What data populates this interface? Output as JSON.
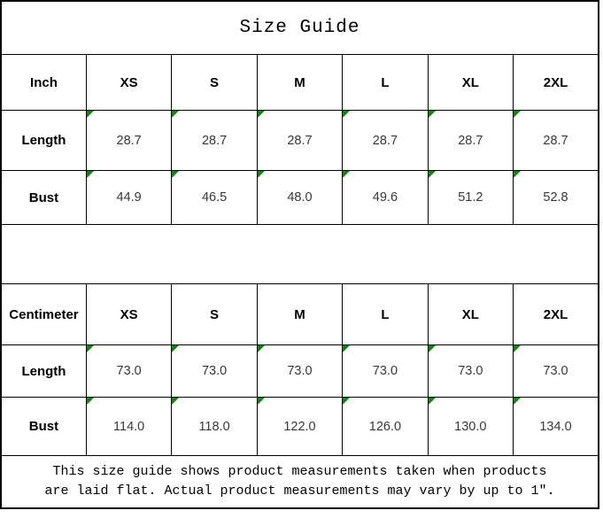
{
  "title": "Size Guide",
  "inch_table": {
    "unit_label": "Inch",
    "sizes": [
      "XS",
      "S",
      "M",
      "L",
      "XL",
      "2XL"
    ],
    "rows": [
      {
        "label": "Length",
        "values": [
          "28.7",
          "28.7",
          "28.7",
          "28.7",
          "28.7",
          "28.7"
        ]
      },
      {
        "label": "Bust",
        "values": [
          "44.9",
          "46.5",
          "48.0",
          "49.6",
          "51.2",
          "52.8"
        ]
      }
    ]
  },
  "cm_table": {
    "unit_label": "Centimeter",
    "sizes": [
      "XS",
      "S",
      "M",
      "L",
      "XL",
      "2XL"
    ],
    "rows": [
      {
        "label": "Length",
        "values": [
          "73.0",
          "73.0",
          "73.0",
          "73.0",
          "73.0",
          "73.0"
        ]
      },
      {
        "label": "Bust",
        "values": [
          "114.0",
          "118.0",
          "122.0",
          "126.0",
          "130.0",
          "134.0"
        ]
      }
    ]
  },
  "footer": {
    "line1": "This size guide shows product measurements taken when products",
    "line2": "are laid flat. Actual product measurements may vary by up to 1″."
  },
  "colors": {
    "border": "#000000",
    "value_text": "#383838",
    "corner_marker_green": "#108510",
    "background": "#ffffff"
  },
  "chart_data": [
    {
      "type": "table",
      "title": "Size Guide",
      "unit": "Inch",
      "columns": [
        "Inch",
        "XS",
        "S",
        "M",
        "L",
        "XL",
        "2XL"
      ],
      "rows": [
        [
          "Length",
          28.7,
          28.7,
          28.7,
          28.7,
          28.7,
          28.7
        ],
        [
          "Bust",
          44.9,
          46.5,
          48.0,
          49.6,
          51.2,
          52.8
        ]
      ]
    },
    {
      "type": "table",
      "title": "Size Guide",
      "unit": "Centimeter",
      "columns": [
        "Centimeter",
        "XS",
        "S",
        "M",
        "L",
        "XL",
        "2XL"
      ],
      "rows": [
        [
          "Length",
          73.0,
          73.0,
          73.0,
          73.0,
          73.0,
          73.0
        ],
        [
          "Bust",
          114.0,
          118.0,
          122.0,
          126.0,
          130.0,
          134.0
        ]
      ]
    }
  ]
}
